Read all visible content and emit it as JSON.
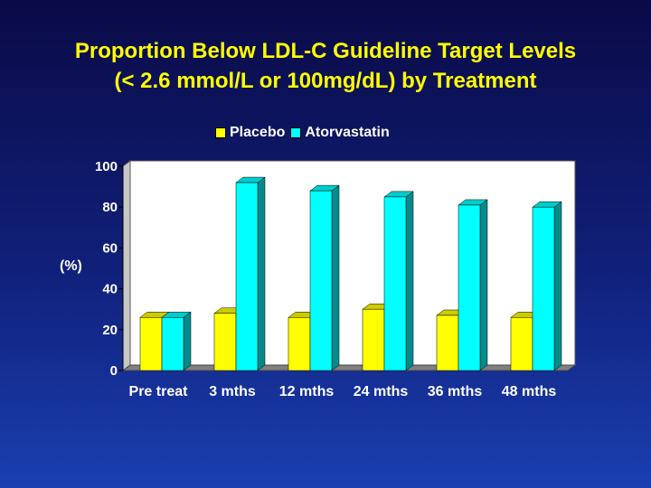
{
  "title_line1": "Proportion Below LDL-C Guideline Target Levels",
  "title_line2": "(< 2.6 mmol/L or 100mg/dL) by Treatment",
  "colors": {
    "placebo": "#ffff00",
    "atorvastatin": "#00ffff"
  },
  "chart_data": {
    "type": "bar",
    "title": "Proportion Below LDL-C Guideline Target Levels (< 2.6 mmol/L or 100mg/dL) by Treatment",
    "ylabel": "(%)",
    "xlabel": "",
    "categories": [
      "Pre treat",
      "3 mths",
      "12 mths",
      "24 mths",
      "36 mths",
      "48 mths"
    ],
    "series": [
      {
        "name": "Placebo",
        "values": [
          26,
          28,
          26,
          30,
          27,
          26
        ]
      },
      {
        "name": "Atorvastatin",
        "values": [
          26,
          92,
          88,
          85,
          81,
          80
        ]
      }
    ],
    "ylim": [
      0,
      100
    ],
    "yticks": [
      "0",
      "20",
      "40",
      "60",
      "80",
      "100"
    ],
    "legend": "top",
    "grid": false
  }
}
